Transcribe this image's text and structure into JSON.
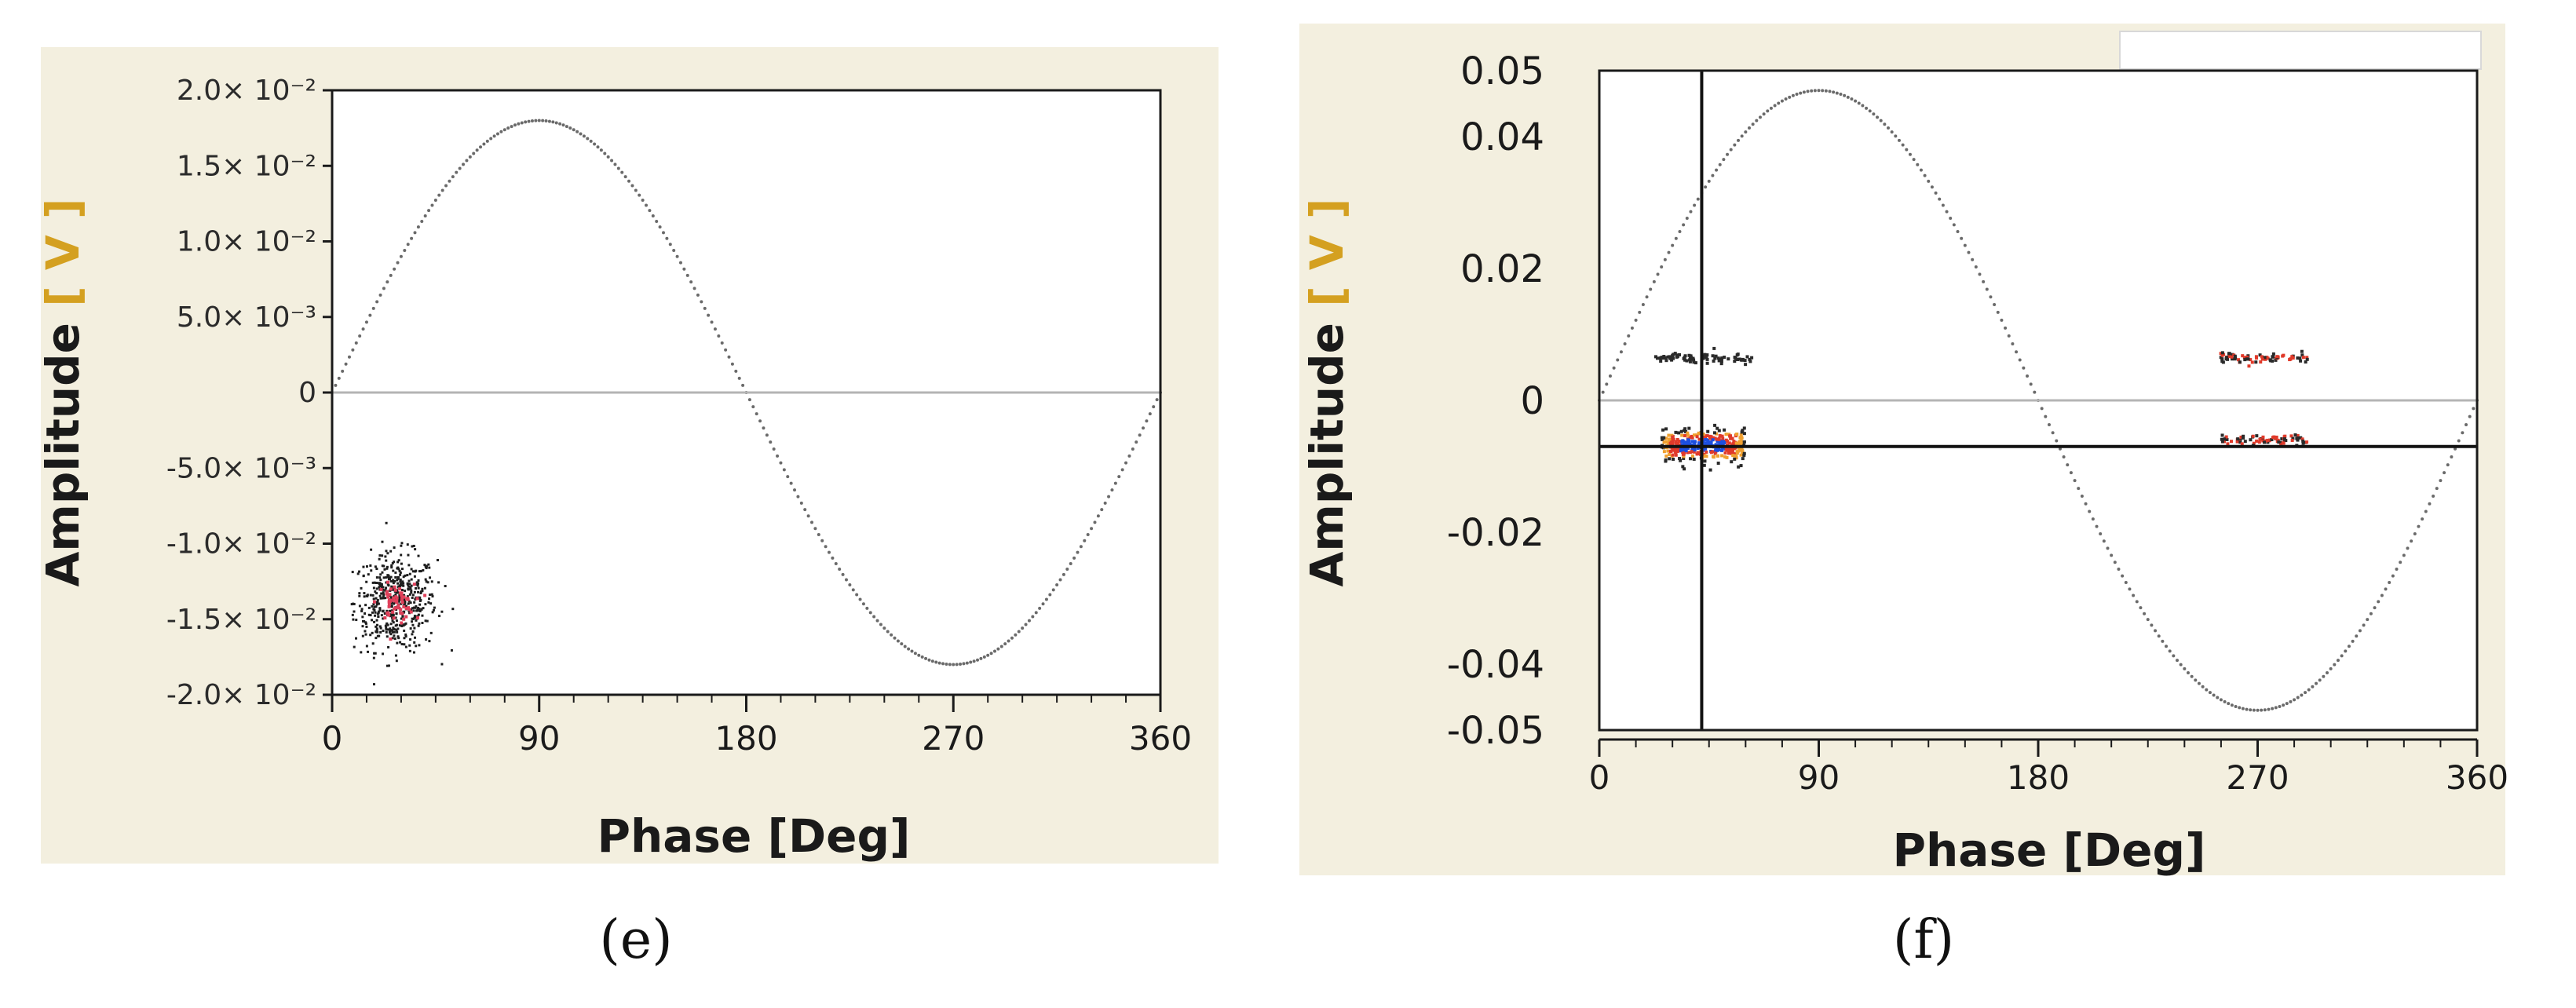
{
  "chart_data": [
    {
      "type": "scatter",
      "panel": "e",
      "caption": "(e)",
      "xlabel": "Phase [Deg]",
      "ylabel_text": "Amplitude ",
      "ylabel_unit": "[ V ]",
      "xlim": [
        0,
        360
      ],
      "ylim": [
        -0.02,
        0.02
      ],
      "xticks": [
        0,
        90,
        180,
        270,
        360
      ],
      "xtick_labels": [
        "0",
        "90",
        "180",
        "270",
        "360"
      ],
      "yticks": [
        0.02,
        0.015,
        0.01,
        0.005,
        0,
        -0.005,
        -0.01,
        -0.015,
        -0.02
      ],
      "ytick_labels": [
        "2.0× 10⁻²",
        "1.5× 10⁻²",
        "1.0× 10⁻²",
        "5.0× 10⁻³",
        "0",
        "-5.0× 10⁻³",
        "-1.0× 10⁻²",
        "-1.5× 10⁻²",
        "-2.0× 10⁻²"
      ],
      "reference_sine": {
        "amplitude": 0.018,
        "period_deg": 360
      },
      "series": [
        {
          "kind": "pd_cluster",
          "x_range": [
            10,
            58
          ],
          "y_center": -0.0138,
          "x_center": 27,
          "points": 520,
          "hotspot_color": "#e0405a"
        }
      ],
      "grid": false
    },
    {
      "type": "scatter",
      "panel": "f",
      "caption": "(f)",
      "xlabel": "Phase [Deg]",
      "ylabel_text": "Amplitude ",
      "ylabel_unit": "[ V ]",
      "xlim": [
        0,
        360
      ],
      "ylim": [
        -0.05,
        0.05
      ],
      "xticks": [
        0,
        90,
        180,
        270,
        360
      ],
      "xtick_labels": [
        "0",
        "90",
        "180",
        "270",
        "360"
      ],
      "ytick_labels": [
        "0.05",
        "0.04",
        "0.02",
        "0",
        "-0.02",
        "-0.04",
        "-0.05"
      ],
      "reference_sine": {
        "amplitude": 0.047,
        "period_deg": 360
      },
      "cursor": {
        "x": 42,
        "y": -0.007
      },
      "series": [
        {
          "kind": "pd_cluster",
          "x_center": 42,
          "y_center": -0.0066,
          "spread_x": 34,
          "colors": [
            "#1c4fe0",
            "#e03a2a",
            "#f0a030",
            "#2a2a2a"
          ]
        },
        {
          "kind": "pd_cluster",
          "x_center": 42,
          "y_center": 0.0067,
          "spread_x": 40,
          "colors": [
            "#2a2a2a"
          ]
        },
        {
          "kind": "pd_cluster",
          "x_center": 272,
          "y_center": 0.0067,
          "spread_x": 36,
          "colors": [
            "#2a2a2a",
            "#e03a2a"
          ]
        },
        {
          "kind": "pd_cluster",
          "x_center": 272,
          "y_center": -0.0058,
          "spread_x": 36,
          "colors": [
            "#2a2a2a",
            "#e03a2a"
          ]
        }
      ],
      "grid": false
    }
  ]
}
